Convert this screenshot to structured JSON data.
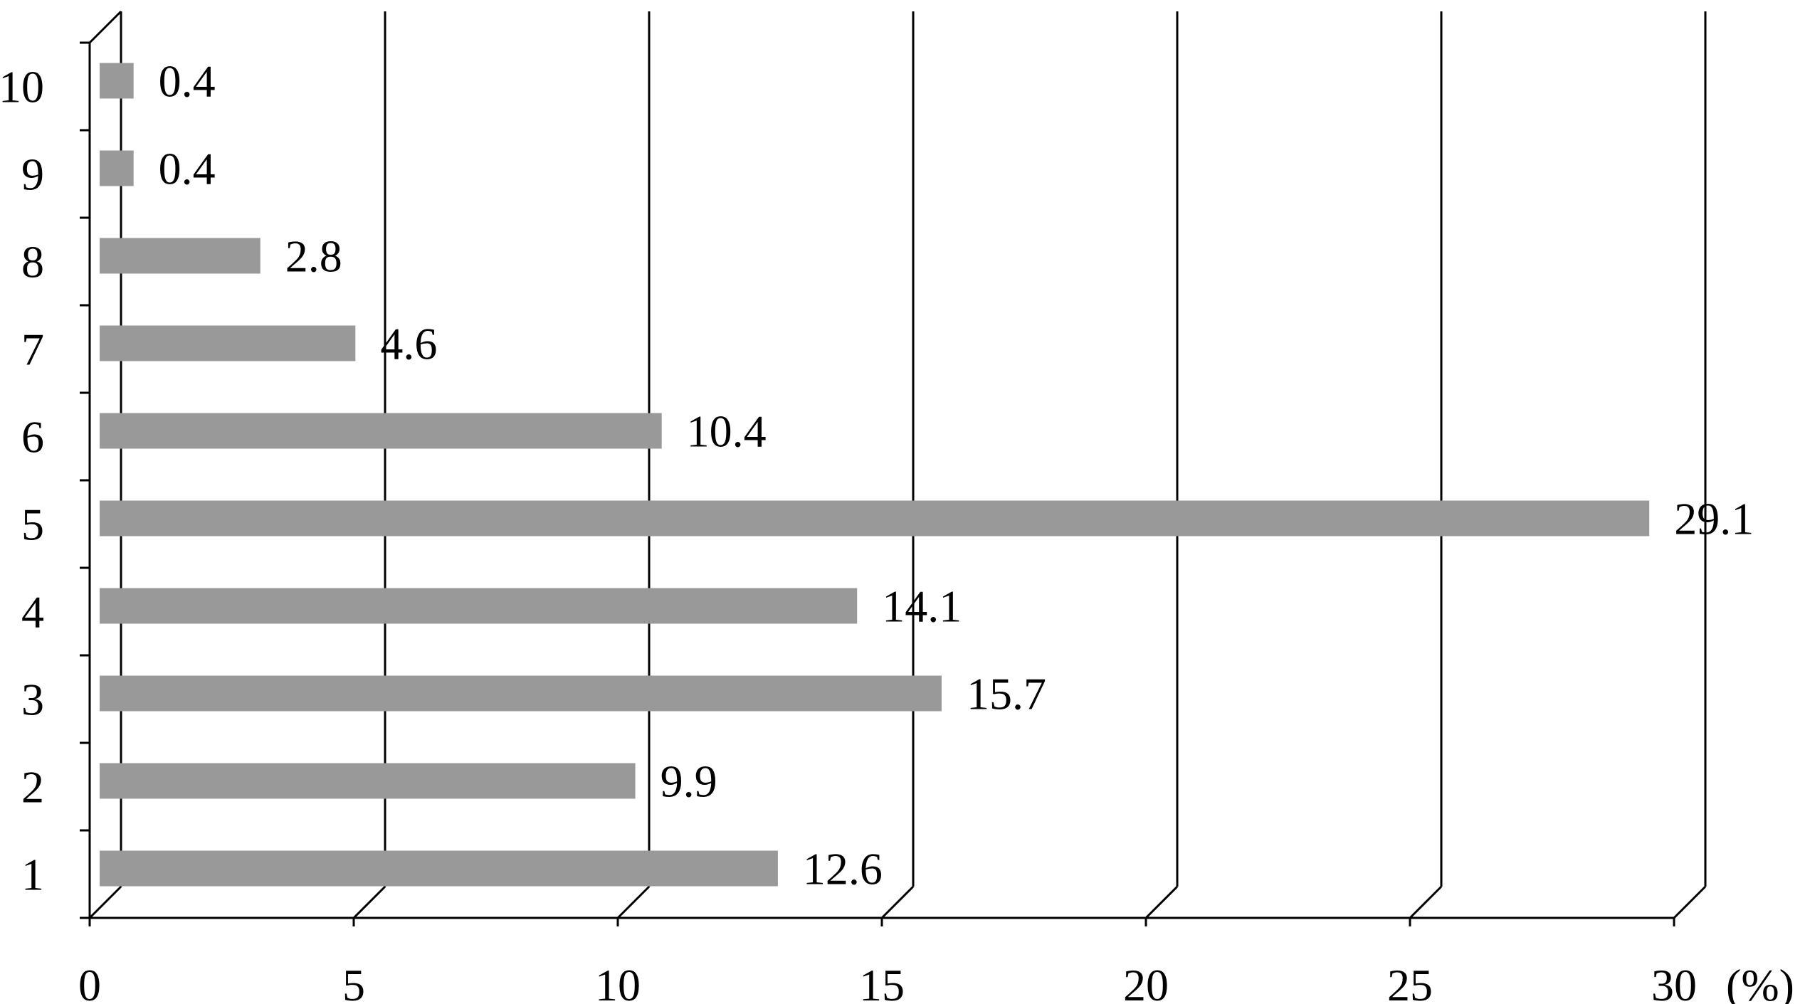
{
  "chart_data": {
    "type": "bar",
    "orientation": "horizontal",
    "style": "3d-wall",
    "categories": [
      "1",
      "2",
      "3",
      "4",
      "5",
      "6",
      "7",
      "8",
      "9",
      "10"
    ],
    "values": [
      12.6,
      9.9,
      15.7,
      14.1,
      29.1,
      10.4,
      4.6,
      2.8,
      0.4,
      0.4
    ],
    "value_labels": [
      "12.6",
      "9.9",
      "15.7",
      "14.1",
      "29.1",
      "10.4",
      "4.6",
      "2.8",
      "0.4",
      "0.4"
    ],
    "xlim": [
      0,
      30
    ],
    "x_ticks": [
      0,
      5,
      10,
      15,
      20,
      25,
      30
    ],
    "x_tick_labels": [
      "0",
      "5",
      "10",
      "15",
      "20",
      "25",
      "30"
    ],
    "x_unit": "(%)",
    "title": "",
    "xlabel": "",
    "ylabel": "",
    "grid": true,
    "legend": "none",
    "bar_color": "#999999",
    "line_color": "#000000"
  }
}
